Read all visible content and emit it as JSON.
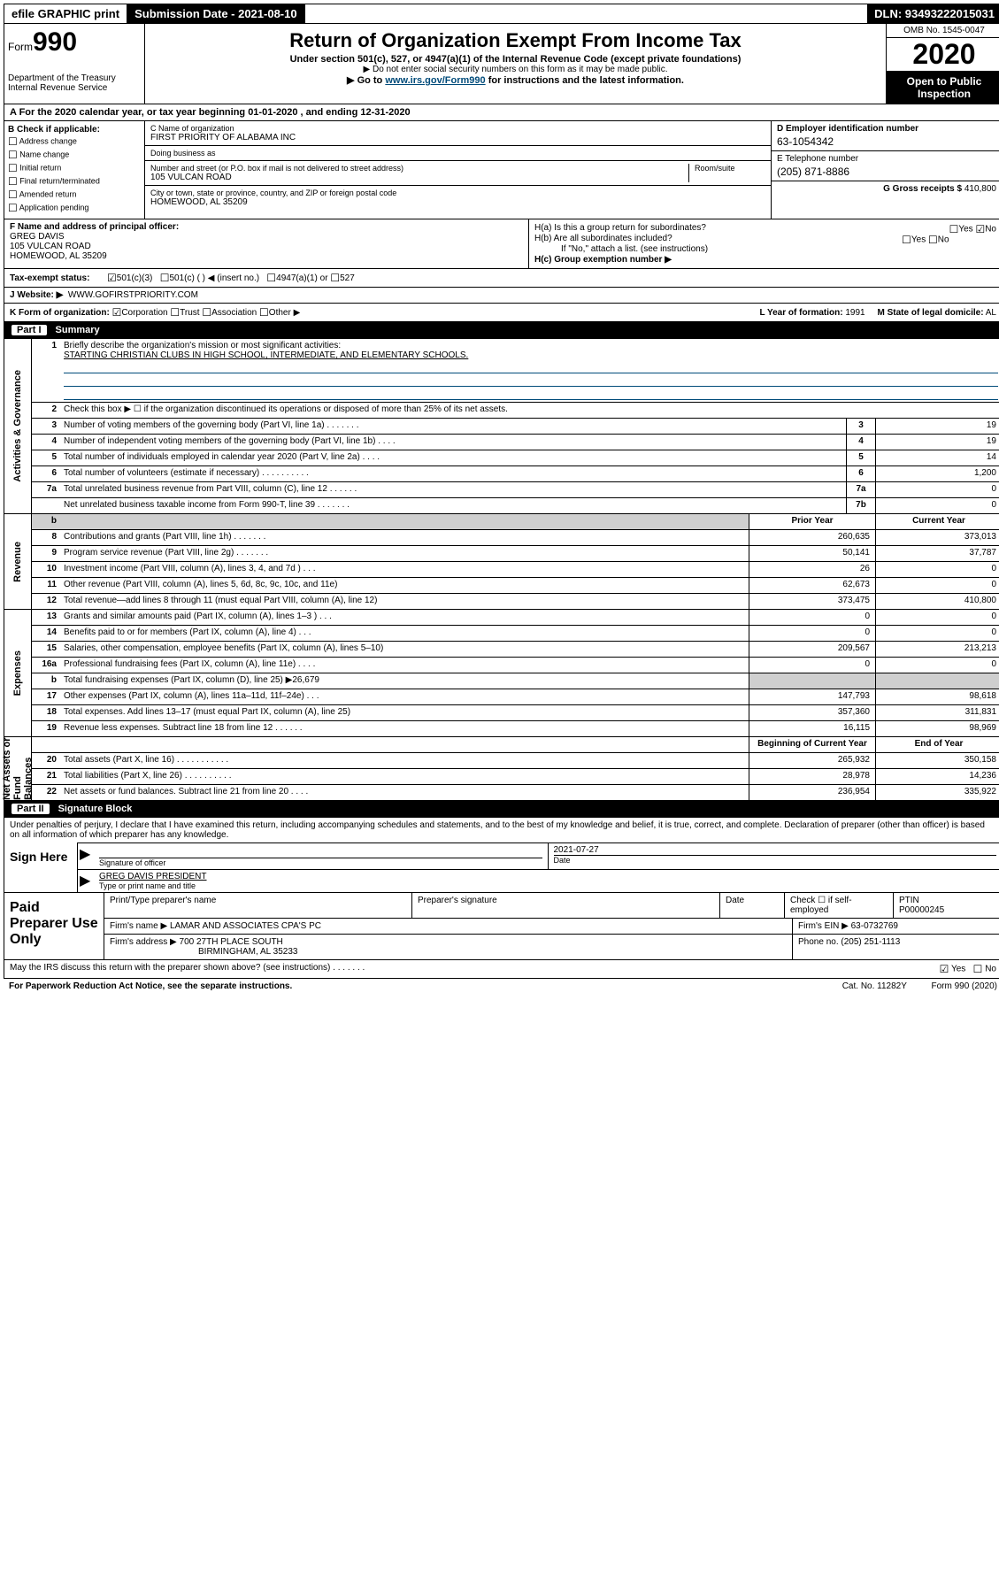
{
  "topbar": {
    "efile": "efile GRAPHIC print",
    "submission": "Submission Date - 2021-08-10",
    "dln": "DLN: 93493222015031"
  },
  "header": {
    "form_label": "Form",
    "form_num": "990",
    "title": "Return of Organization Exempt From Income Tax",
    "subtitle1": "Under section 501(c), 527, or 4947(a)(1) of the Internal Revenue Code (except private foundations)",
    "subtitle2": "▶ Do not enter social security numbers on this form as it may be made public.",
    "subtitle3_pre": "▶ Go to ",
    "subtitle3_link": "www.irs.gov/Form990",
    "subtitle3_post": " for instructions and the latest information.",
    "dept": "Department of the Treasury\nInternal Revenue Service",
    "omb": "OMB No. 1545-0047",
    "year": "2020",
    "open": "Open to Public Inspection"
  },
  "cal_year": "A For the 2020 calendar year, or tax year beginning 01-01-2020    , and ending 12-31-2020",
  "check_if": {
    "label": "B Check if applicable:",
    "options": [
      "Address change",
      "Name change",
      "Initial return",
      "Final return/terminated",
      "Amended return",
      "Application pending"
    ]
  },
  "org": {
    "c_label": "C Name of organization",
    "name": "FIRST PRIORITY OF ALABAMA INC",
    "dba_label": "Doing business as",
    "dba": "",
    "addr_label": "Number and street (or P.O. box if mail is not delivered to street address)",
    "room_label": "Room/suite",
    "addr": "105 VULCAN ROAD",
    "city_label": "City or town, state or province, country, and ZIP or foreign postal code",
    "city": "HOMEWOOD, AL  35209"
  },
  "de": {
    "d_label": "D Employer identification number",
    "ein": "63-1054342",
    "e_label": "E Telephone number",
    "phone": "(205) 871-8886",
    "g_label": "G Gross receipts $",
    "gross": "410,800"
  },
  "fh": {
    "f_label": "F Name and address of principal officer:",
    "officer": "GREG DAVIS\n105 VULCAN ROAD\nHOMEWOOD, AL  35209",
    "ha": "H(a)  Is this a group return for subordinates?",
    "hb": "H(b)  Are all subordinates included?",
    "hb_note": "If \"No,\" attach a list. (see instructions)",
    "hc": "H(c)  Group exemption number ▶",
    "yes": "Yes",
    "no": "No"
  },
  "tax_exempt": {
    "label": "Tax-exempt status:",
    "opt1": "501(c)(3)",
    "opt2": "501(c) (  ) ◀ (insert no.)",
    "opt3": "4947(a)(1) or",
    "opt4": "527"
  },
  "website": {
    "label": "J   Website: ▶",
    "val": "WWW.GOFIRSTPRIORITY.COM"
  },
  "korg": {
    "label": "K Form of organization:",
    "opts": [
      "Corporation",
      "Trust",
      "Association",
      "Other ▶"
    ],
    "l_label": "L Year of formation:",
    "l_val": "1991",
    "m_label": "M State of legal domicile:",
    "m_val": "AL"
  },
  "part1": {
    "num": "Part I",
    "title": "Summary"
  },
  "summary": {
    "governance_label": "Activities & Governance",
    "revenue_label": "Revenue",
    "expenses_label": "Expenses",
    "netassets_label": "Net Assets or Fund Balances",
    "q1": "Briefly describe the organization's mission or most significant activities:",
    "q1_ans": "STARTING CHRISTIAN CLUBS IN HIGH SCHOOL, INTERMEDIATE, AND ELEMENTARY SCHOOLS.",
    "q2": "Check this box ▶ ☐  if the organization discontinued its operations or disposed of more than 25% of its net assets.",
    "rows_gov": [
      {
        "n": "3",
        "d": "Number of voting members of the governing body (Part VI, line 1a)   .    .    .    .    .    .    .",
        "b": "3",
        "v": "19"
      },
      {
        "n": "4",
        "d": "Number of independent voting members of the governing body (Part VI, line 1b)    .    .    .    .",
        "b": "4",
        "v": "19"
      },
      {
        "n": "5",
        "d": "Total number of individuals employed in calendar year 2020 (Part V, line 2a)    .    .    .    .",
        "b": "5",
        "v": "14"
      },
      {
        "n": "6",
        "d": "Total number of volunteers (estimate if necessary)    .    .    .    .    .    .    .    .    .    .",
        "b": "6",
        "v": "1,200"
      },
      {
        "n": "7a",
        "d": "Total unrelated business revenue from Part VIII, column (C), line 12    .    .    .    .    .    .",
        "b": "7a",
        "v": "0"
      },
      {
        "n": "",
        "d": "Net unrelated business taxable income from Form 990-T, line 39    .    .    .    .    .    .    .",
        "b": "7b",
        "v": "0"
      }
    ],
    "col_prior": "Prior Year",
    "col_current": "Current Year",
    "rows_rev": [
      {
        "n": "8",
        "d": "Contributions and grants (Part VIII, line 1h)    .    .    .    .    .    .    .",
        "p": "260,635",
        "c": "373,013"
      },
      {
        "n": "9",
        "d": "Program service revenue (Part VIII, line 2g)    .    .    .    .    .    .    .",
        "p": "50,141",
        "c": "37,787"
      },
      {
        "n": "10",
        "d": "Investment income (Part VIII, column (A), lines 3, 4, and 7d )    .    .    .",
        "p": "26",
        "c": "0"
      },
      {
        "n": "11",
        "d": "Other revenue (Part VIII, column (A), lines 5, 6d, 8c, 9c, 10c, and 11e)",
        "p": "62,673",
        "c": "0"
      },
      {
        "n": "12",
        "d": "Total revenue—add lines 8 through 11 (must equal Part VIII, column (A), line 12)",
        "p": "373,475",
        "c": "410,800"
      }
    ],
    "rows_exp": [
      {
        "n": "13",
        "d": "Grants and similar amounts paid (Part IX, column (A), lines 1–3 )    .    .    .",
        "p": "0",
        "c": "0"
      },
      {
        "n": "14",
        "d": "Benefits paid to or for members (Part IX, column (A), line 4)    .    .    .",
        "p": "0",
        "c": "0"
      },
      {
        "n": "15",
        "d": "Salaries, other compensation, employee benefits (Part IX, column (A), lines 5–10)",
        "p": "209,567",
        "c": "213,213"
      },
      {
        "n": "16a",
        "d": "Professional fundraising fees (Part IX, column (A), line 11e)    .    .    .    .",
        "p": "0",
        "c": "0"
      },
      {
        "n": "b",
        "d": "Total fundraising expenses (Part IX, column (D), line 25) ▶26,679",
        "p": "",
        "c": "",
        "shade": true
      },
      {
        "n": "17",
        "d": "Other expenses (Part IX, column (A), lines 11a–11d, 11f–24e)    .    .    .",
        "p": "147,793",
        "c": "98,618"
      },
      {
        "n": "18",
        "d": "Total expenses. Add lines 13–17 (must equal Part IX, column (A), line 25)",
        "p": "357,360",
        "c": "311,831"
      },
      {
        "n": "19",
        "d": "Revenue less expenses. Subtract line 18 from line 12    .    .    .    .    .    .",
        "p": "16,115",
        "c": "98,969"
      }
    ],
    "col_begin": "Beginning of Current Year",
    "col_end": "End of Year",
    "rows_net": [
      {
        "n": "20",
        "d": "Total assets (Part X, line 16)    .    .    .    .    .    .    .    .    .    .    .",
        "p": "265,932",
        "c": "350,158"
      },
      {
        "n": "21",
        "d": "Total liabilities (Part X, line 26)    .    .    .    .    .    .    .    .    .    .",
        "p": "28,978",
        "c": "14,236"
      },
      {
        "n": "22",
        "d": "Net assets or fund balances. Subtract line 21 from line 20    .    .    .    .",
        "p": "236,954",
        "c": "335,922"
      }
    ]
  },
  "part2": {
    "num": "Part II",
    "title": "Signature Block"
  },
  "sig": {
    "declaration": "Under penalties of perjury, I declare that I have examined this return, including accompanying schedules and statements, and to the best of my knowledge and belief, it is true, correct, and complete. Declaration of preparer (other than officer) is based on all information of which preparer has any knowledge.",
    "sign_here": "Sign Here",
    "sig_officer": "Signature of officer",
    "date": "2021-07-27",
    "date_label": "Date",
    "name": "GREG DAVIS PRESIDENT",
    "name_label": "Type or print name and title"
  },
  "paid": {
    "label": "Paid Preparer Use Only",
    "h1": "Print/Type preparer's name",
    "h2": "Preparer's signature",
    "h3": "Date",
    "h4a": "Check ☐ if self-employed",
    "h4b": "PTIN",
    "ptin": "P00000245",
    "firm_name_label": "Firm's name    ▶",
    "firm_name": "LAMAR AND ASSOCIATES CPA'S PC",
    "firm_ein_label": "Firm's EIN ▶",
    "firm_ein": "63-0732769",
    "firm_addr_label": "Firm's address ▶",
    "firm_addr": "700 27TH PLACE SOUTH",
    "firm_city": "BIRMINGHAM, AL  35233",
    "phone_label": "Phone no.",
    "phone": "(205) 251-1113"
  },
  "footer": {
    "discuss": "May the IRS discuss this return with the preparer shown above? (see instructions)    .    .    .    .    .    .    .",
    "yes": "Yes",
    "no": "No",
    "paperwork": "For Paperwork Reduction Act Notice, see the separate instructions.",
    "cat": "Cat. No. 11282Y",
    "formref": "Form 990 (2020)"
  }
}
